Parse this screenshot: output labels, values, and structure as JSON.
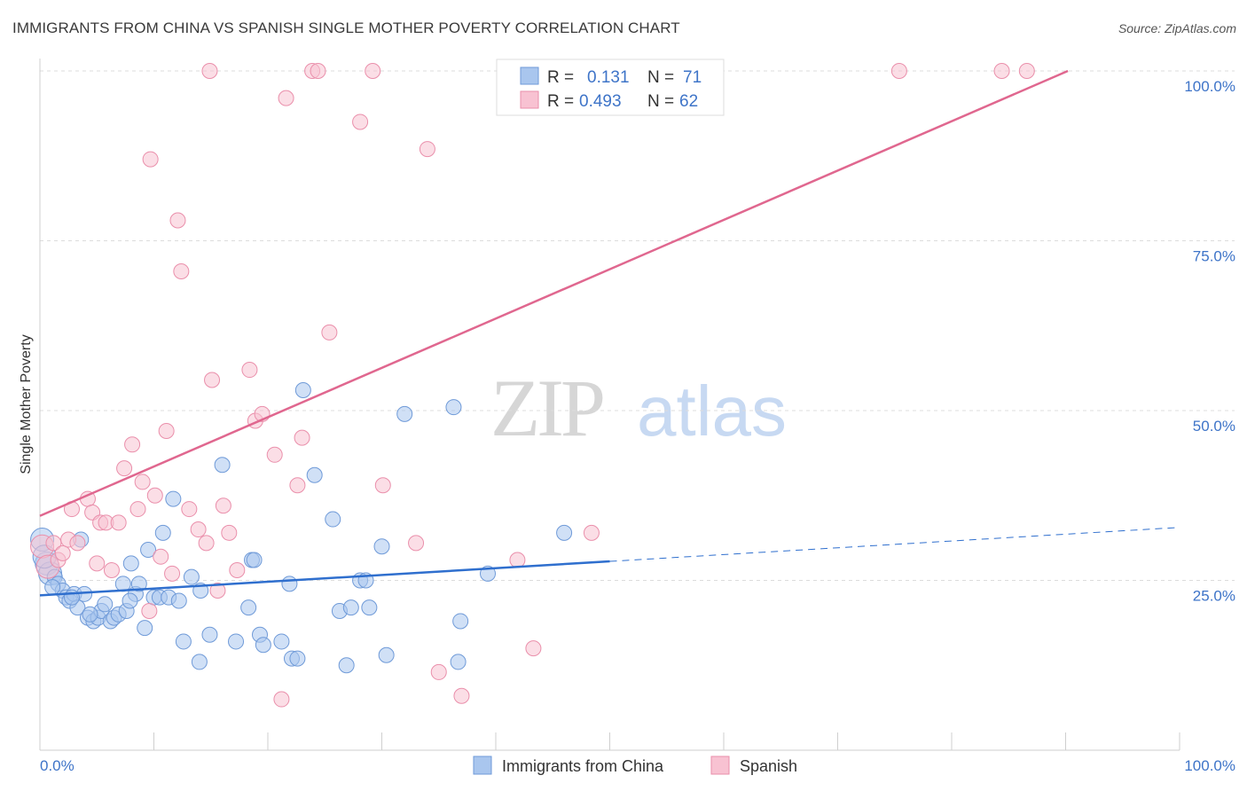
{
  "header": {
    "title": "IMMIGRANTS FROM CHINA VS SPANISH SINGLE MOTHER POVERTY CORRELATION CHART",
    "source": "Source: ZipAtlas.com"
  },
  "watermark": {
    "zip": "ZIP",
    "atlas": "atlas"
  },
  "legend": {
    "rows": [
      {
        "r_label": "R =",
        "r_value": "0.131",
        "n_label": "N =",
        "n_value": "71",
        "color": "#a7c4ee"
      },
      {
        "r_label": "R =",
        "r_value": "0.493",
        "n_label": "N =",
        "n_value": "62",
        "color": "#f6b7ca"
      }
    ]
  },
  "colors": {
    "blue_fill": "#a9c6ee",
    "blue_stroke": "#6f9ad8",
    "blue_line": "#2f6fce",
    "pink_fill": "#f8c2d2",
    "pink_stroke": "#ea8fab",
    "pink_line": "#e0678f",
    "tick": "#3e74c8",
    "grid": "#dcdcdc"
  },
  "chart_data": {
    "type": "scatter",
    "title": "IMMIGRANTS FROM CHINA VS SPANISH SINGLE MOTHER POVERTY CORRELATION CHART",
    "xlabel": "",
    "ylabel": "Single Mother Poverty",
    "xlim": [
      0,
      100
    ],
    "ylim": [
      0,
      100
    ],
    "x_tick_labels": [
      "0.0%",
      "100.0%"
    ],
    "y_tick_labels": [
      "100.0%",
      "75.0%",
      "50.0%",
      "25.0%"
    ],
    "y_ticks": [
      100,
      75,
      50,
      25
    ],
    "grid": "horizontal dashed",
    "legend_position": "top-center",
    "series": [
      {
        "name": "Immigrants from China",
        "color": "#a9c6ee",
        "points": [
          [
            0.2,
            31
          ],
          [
            0.6,
            27.5
          ],
          [
            0.9,
            26
          ],
          [
            1.3,
            25.5
          ],
          [
            1.6,
            24.5
          ],
          [
            2.0,
            23.5
          ],
          [
            2.3,
            22.5
          ],
          [
            2.6,
            22
          ],
          [
            3.0,
            23
          ],
          [
            3.3,
            21
          ],
          [
            3.6,
            31
          ],
          [
            3.9,
            23
          ],
          [
            4.2,
            19.5
          ],
          [
            4.7,
            19
          ],
          [
            5.1,
            19.5
          ],
          [
            5.4,
            20.5
          ],
          [
            5.7,
            21.5
          ],
          [
            6.2,
            19
          ],
          [
            6.5,
            19.5
          ],
          [
            6.9,
            20
          ],
          [
            7.3,
            24.5
          ],
          [
            7.6,
            20.5
          ],
          [
            8.0,
            27.5
          ],
          [
            8.4,
            23
          ],
          [
            8.7,
            24.5
          ],
          [
            9.2,
            18
          ],
          [
            9.5,
            29.5
          ],
          [
            10.0,
            22.5
          ],
          [
            10.5,
            22.5
          ],
          [
            10.8,
            32
          ],
          [
            11.3,
            22.5
          ],
          [
            11.7,
            37
          ],
          [
            12.2,
            22
          ],
          [
            13.3,
            25.5
          ],
          [
            14.1,
            23.5
          ],
          [
            14.9,
            17
          ],
          [
            14.0,
            13
          ],
          [
            12.6,
            16
          ],
          [
            16.0,
            42
          ],
          [
            17.2,
            16
          ],
          [
            18.6,
            28
          ],
          [
            18.8,
            28
          ],
          [
            19.3,
            17
          ],
          [
            19.6,
            15.5
          ],
          [
            18.3,
            21
          ],
          [
            21.2,
            16
          ],
          [
            22.1,
            13.5
          ],
          [
            22.6,
            13.5
          ],
          [
            23.1,
            53
          ],
          [
            21.9,
            24.5
          ],
          [
            24.1,
            40.5
          ],
          [
            25.7,
            34
          ],
          [
            26.3,
            20.5
          ],
          [
            26.9,
            12.5
          ],
          [
            27.3,
            21
          ],
          [
            28.1,
            25
          ],
          [
            28.6,
            25
          ],
          [
            28.9,
            21
          ],
          [
            30.0,
            30
          ],
          [
            30.4,
            14
          ],
          [
            32.0,
            49.5
          ],
          [
            36.3,
            50.5
          ],
          [
            36.7,
            13
          ],
          [
            36.9,
            19
          ],
          [
            39.3,
            26
          ],
          [
            46.0,
            32
          ],
          [
            0.4,
            28.5
          ],
          [
            1.1,
            24
          ],
          [
            2.8,
            22.5
          ],
          [
            4.4,
            20
          ],
          [
            7.9,
            22
          ]
        ]
      },
      {
        "name": "Spanish",
        "color": "#f8c2d2",
        "points": [
          [
            0.2,
            30
          ],
          [
            0.7,
            27
          ],
          [
            1.2,
            30.5
          ],
          [
            1.6,
            28
          ],
          [
            2.0,
            29
          ],
          [
            2.5,
            31
          ],
          [
            2.8,
            35.5
          ],
          [
            3.3,
            30.5
          ],
          [
            4.2,
            37
          ],
          [
            4.6,
            35
          ],
          [
            5.0,
            27.5
          ],
          [
            5.3,
            33.5
          ],
          [
            5.8,
            33.5
          ],
          [
            6.3,
            26.5
          ],
          [
            6.9,
            33.5
          ],
          [
            7.4,
            41.5
          ],
          [
            8.1,
            45
          ],
          [
            8.6,
            35.5
          ],
          [
            9.0,
            39.5
          ],
          [
            9.6,
            20.5
          ],
          [
            10.1,
            37.5
          ],
          [
            10.6,
            28.5
          ],
          [
            11.1,
            47
          ],
          [
            11.6,
            26
          ],
          [
            12.1,
            78
          ],
          [
            12.4,
            70.5
          ],
          [
            13.1,
            35.5
          ],
          [
            13.9,
            32.5
          ],
          [
            14.6,
            30.5
          ],
          [
            15.1,
            54.5
          ],
          [
            15.6,
            23.5
          ],
          [
            16.1,
            36
          ],
          [
            16.6,
            32
          ],
          [
            17.3,
            26.5
          ],
          [
            18.4,
            56
          ],
          [
            18.9,
            48.5
          ],
          [
            19.5,
            49.5
          ],
          [
            20.6,
            43.5
          ],
          [
            21.2,
            7.5
          ],
          [
            21.6,
            96
          ],
          [
            22.6,
            39
          ],
          [
            23.0,
            46
          ],
          [
            23.9,
            100
          ],
          [
            24.4,
            100
          ],
          [
            25.4,
            61.5
          ],
          [
            14.9,
            100
          ],
          [
            9.7,
            87
          ],
          [
            28.1,
            92.5
          ],
          [
            29.2,
            100
          ],
          [
            30.1,
            39
          ],
          [
            33.0,
            30.5
          ],
          [
            34.0,
            88.5
          ],
          [
            35.0,
            11.5
          ],
          [
            37.0,
            8
          ],
          [
            41.9,
            28
          ],
          [
            43.3,
            15
          ],
          [
            48.4,
            32
          ],
          [
            45.3,
            100
          ],
          [
            75.4,
            100
          ],
          [
            84.4,
            100
          ],
          [
            86.6,
            100
          ],
          [
            41.7,
            100
          ]
        ]
      }
    ],
    "trend_lines": [
      {
        "series": "Immigrants from China",
        "x": [
          0,
          50
        ],
        "y": [
          22.8,
          27.8
        ],
        "dashed_extension_to": 100,
        "dashed_extension_y": 32.8
      },
      {
        "series": "Spanish",
        "x": [
          0,
          90.2
        ],
        "y": [
          34.5,
          100
        ]
      }
    ]
  }
}
